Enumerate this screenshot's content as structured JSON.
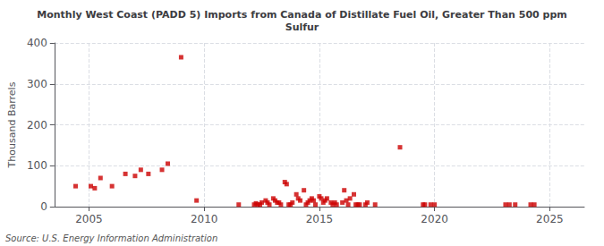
{
  "chart_data": {
    "type": "scatter",
    "title": "Monthly West Coast (PADD 5) Imports from Canada of Distillate Fuel Oil, Greater Than 500 ppm\nSulfur",
    "ylabel": "Thousand Barrels",
    "source": "Source: U.S. Energy Information Administration",
    "color": "#cc0000",
    "marker": "square",
    "grid": true,
    "xlim": [
      2003.5,
      2026.5
    ],
    "xticks": [
      2005,
      2010,
      2015,
      2020,
      2025
    ],
    "ylim": [
      0,
      400
    ],
    "yticks": [
      0,
      100,
      200,
      300,
      400
    ],
    "x": [
      2004.42,
      2005.08,
      2005.25,
      2005.5,
      2006.0,
      2006.58,
      2007.0,
      2007.25,
      2007.58,
      2008.17,
      2008.42,
      2009.0,
      2009.67,
      2011.5,
      2012.17,
      2012.25,
      2012.33,
      2012.42,
      2012.5,
      2012.67,
      2012.75,
      2012.83,
      2013.0,
      2013.08,
      2013.17,
      2013.25,
      2013.33,
      2013.5,
      2013.58,
      2013.67,
      2013.75,
      2013.83,
      2014.0,
      2014.08,
      2014.17,
      2014.33,
      2014.42,
      2014.5,
      2014.58,
      2014.67,
      2014.75,
      2014.83,
      2015.0,
      2015.08,
      2015.17,
      2015.25,
      2015.33,
      2015.5,
      2015.58,
      2015.67,
      2015.75,
      2016.0,
      2016.08,
      2016.17,
      2016.25,
      2016.33,
      2016.5,
      2016.58,
      2016.67,
      2016.75,
      2017.0,
      2017.08,
      2017.42,
      2018.5,
      2019.5,
      2019.58,
      2019.83,
      2020.0,
      2023.08,
      2023.25,
      2023.5,
      2024.17,
      2024.33
    ],
    "values": [
      50,
      50,
      45,
      70,
      50,
      80,
      75,
      90,
      80,
      90,
      105,
      365,
      15,
      5,
      5,
      8,
      5,
      5,
      10,
      15,
      10,
      5,
      20,
      15,
      10,
      10,
      5,
      60,
      55,
      5,
      5,
      10,
      30,
      20,
      15,
      40,
      5,
      10,
      15,
      20,
      15,
      5,
      25,
      20,
      10,
      15,
      20,
      10,
      5,
      10,
      5,
      10,
      40,
      15,
      5,
      20,
      30,
      5,
      5,
      5,
      5,
      10,
      5,
      145,
      5,
      5,
      5,
      5,
      5,
      5,
      5,
      5,
      5
    ]
  }
}
